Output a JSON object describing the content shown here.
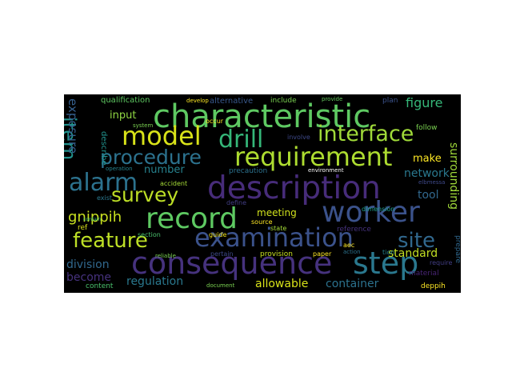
{
  "wordcloud": {
    "words": [
      {
        "text": "characteristic",
        "color": "#5ec962"
      },
      {
        "text": "requirement",
        "color": "#addc30"
      },
      {
        "text": "description",
        "color": "#472c7a"
      },
      {
        "text": "examination",
        "color": "#3b528b"
      },
      {
        "text": "consequence",
        "color": "#46327e"
      },
      {
        "text": "step",
        "color": "#2a788e"
      },
      {
        "text": "record",
        "color": "#5ec962"
      },
      {
        "text": "worker",
        "color": "#3b528b"
      },
      {
        "text": "interface",
        "color": "#a0da39"
      },
      {
        "text": "model",
        "color": "#d8e219"
      },
      {
        "text": "drill",
        "color": "#35b779"
      },
      {
        "text": "alarm",
        "color": "#2c728e"
      },
      {
        "text": "procedure",
        "color": "#2c728e"
      },
      {
        "text": "survey",
        "color": "#bddf26"
      },
      {
        "text": "feature",
        "color": "#bddf26"
      },
      {
        "text": "site",
        "color": "#31688e"
      },
      {
        "text": "item",
        "color": "#21918c"
      },
      {
        "text": "exposure",
        "color": "#355f8d"
      },
      {
        "text": "gnippih",
        "color": "#c8e020"
      },
      {
        "text": "figure",
        "color": "#35b779"
      },
      {
        "text": "surrounding",
        "color": "#a0da39"
      },
      {
        "text": "network",
        "color": "#2a788e"
      },
      {
        "text": "tool",
        "color": "#31688e"
      },
      {
        "text": "standard",
        "color": "#c2df23"
      },
      {
        "text": "make",
        "color": "#fde725"
      },
      {
        "text": "regulation",
        "color": "#2a788e"
      },
      {
        "text": "container",
        "color": "#2c728e"
      },
      {
        "text": "allowable",
        "color": "#d8e219"
      },
      {
        "text": "division",
        "color": "#31688e"
      },
      {
        "text": "become",
        "color": "#46327e"
      },
      {
        "text": "meeting",
        "color": "#d0e11c"
      },
      {
        "text": "input",
        "color": "#90d743"
      },
      {
        "text": "number",
        "color": "#26828e"
      },
      {
        "text": "qualification",
        "color": "#5ec962"
      },
      {
        "text": "alternative",
        "color": "#38588c"
      },
      {
        "text": "develop",
        "color": "#fde725"
      },
      {
        "text": "include",
        "color": "#7ad151"
      },
      {
        "text": "plan",
        "color": "#3b528b"
      },
      {
        "text": "provide",
        "color": "#65cb5e"
      },
      {
        "text": "describe",
        "color": "#21918c"
      },
      {
        "text": "system",
        "color": "#7ad151"
      },
      {
        "text": "occur",
        "color": "#fde725"
      },
      {
        "text": "involve",
        "color": "#3e4989"
      },
      {
        "text": "follow",
        "color": "#7ad151"
      },
      {
        "text": "precaution",
        "color": "#2c728e"
      },
      {
        "text": "environment",
        "color": "#ffffff"
      },
      {
        "text": "source",
        "color": "#fde725"
      },
      {
        "text": "provision",
        "color": "#c8e020"
      },
      {
        "text": "define",
        "color": "#433e85"
      },
      {
        "text": "state",
        "color": "#a5db36"
      },
      {
        "text": "reference",
        "color": "#46327e"
      },
      {
        "text": "paper",
        "color": "#fde725"
      },
      {
        "text": "action",
        "color": "#2c728e"
      },
      {
        "text": "pertain",
        "color": "#3e4989"
      },
      {
        "text": "guide",
        "color": "#f1e51d"
      },
      {
        "text": "section",
        "color": "#4ac16d"
      },
      {
        "text": "reliable",
        "color": "#7ad151"
      },
      {
        "text": "accident",
        "color": "#a5db36"
      },
      {
        "text": "operation",
        "color": "#26828e"
      },
      {
        "text": "exist",
        "color": "#2a788e"
      },
      {
        "text": "ref",
        "color": "#d8e219"
      },
      {
        "text": "contain",
        "color": "#35b779"
      },
      {
        "text": "content",
        "color": "#4ac16d"
      },
      {
        "text": "material",
        "color": "#482475"
      },
      {
        "text": "deppih",
        "color": "#fde725"
      },
      {
        "text": "require",
        "color": "#433e85"
      },
      {
        "text": "dimension",
        "color": "#1f9e89"
      },
      {
        "text": "aec",
        "color": "#fde725"
      },
      {
        "text": "prepare",
        "color": "#31688e"
      },
      {
        "text": "document",
        "color": "#7ad151"
      },
      {
        "text": "tion",
        "color": "#26828e"
      },
      {
        "text": "elbmessa",
        "color": "#3e4989"
      }
    ]
  }
}
